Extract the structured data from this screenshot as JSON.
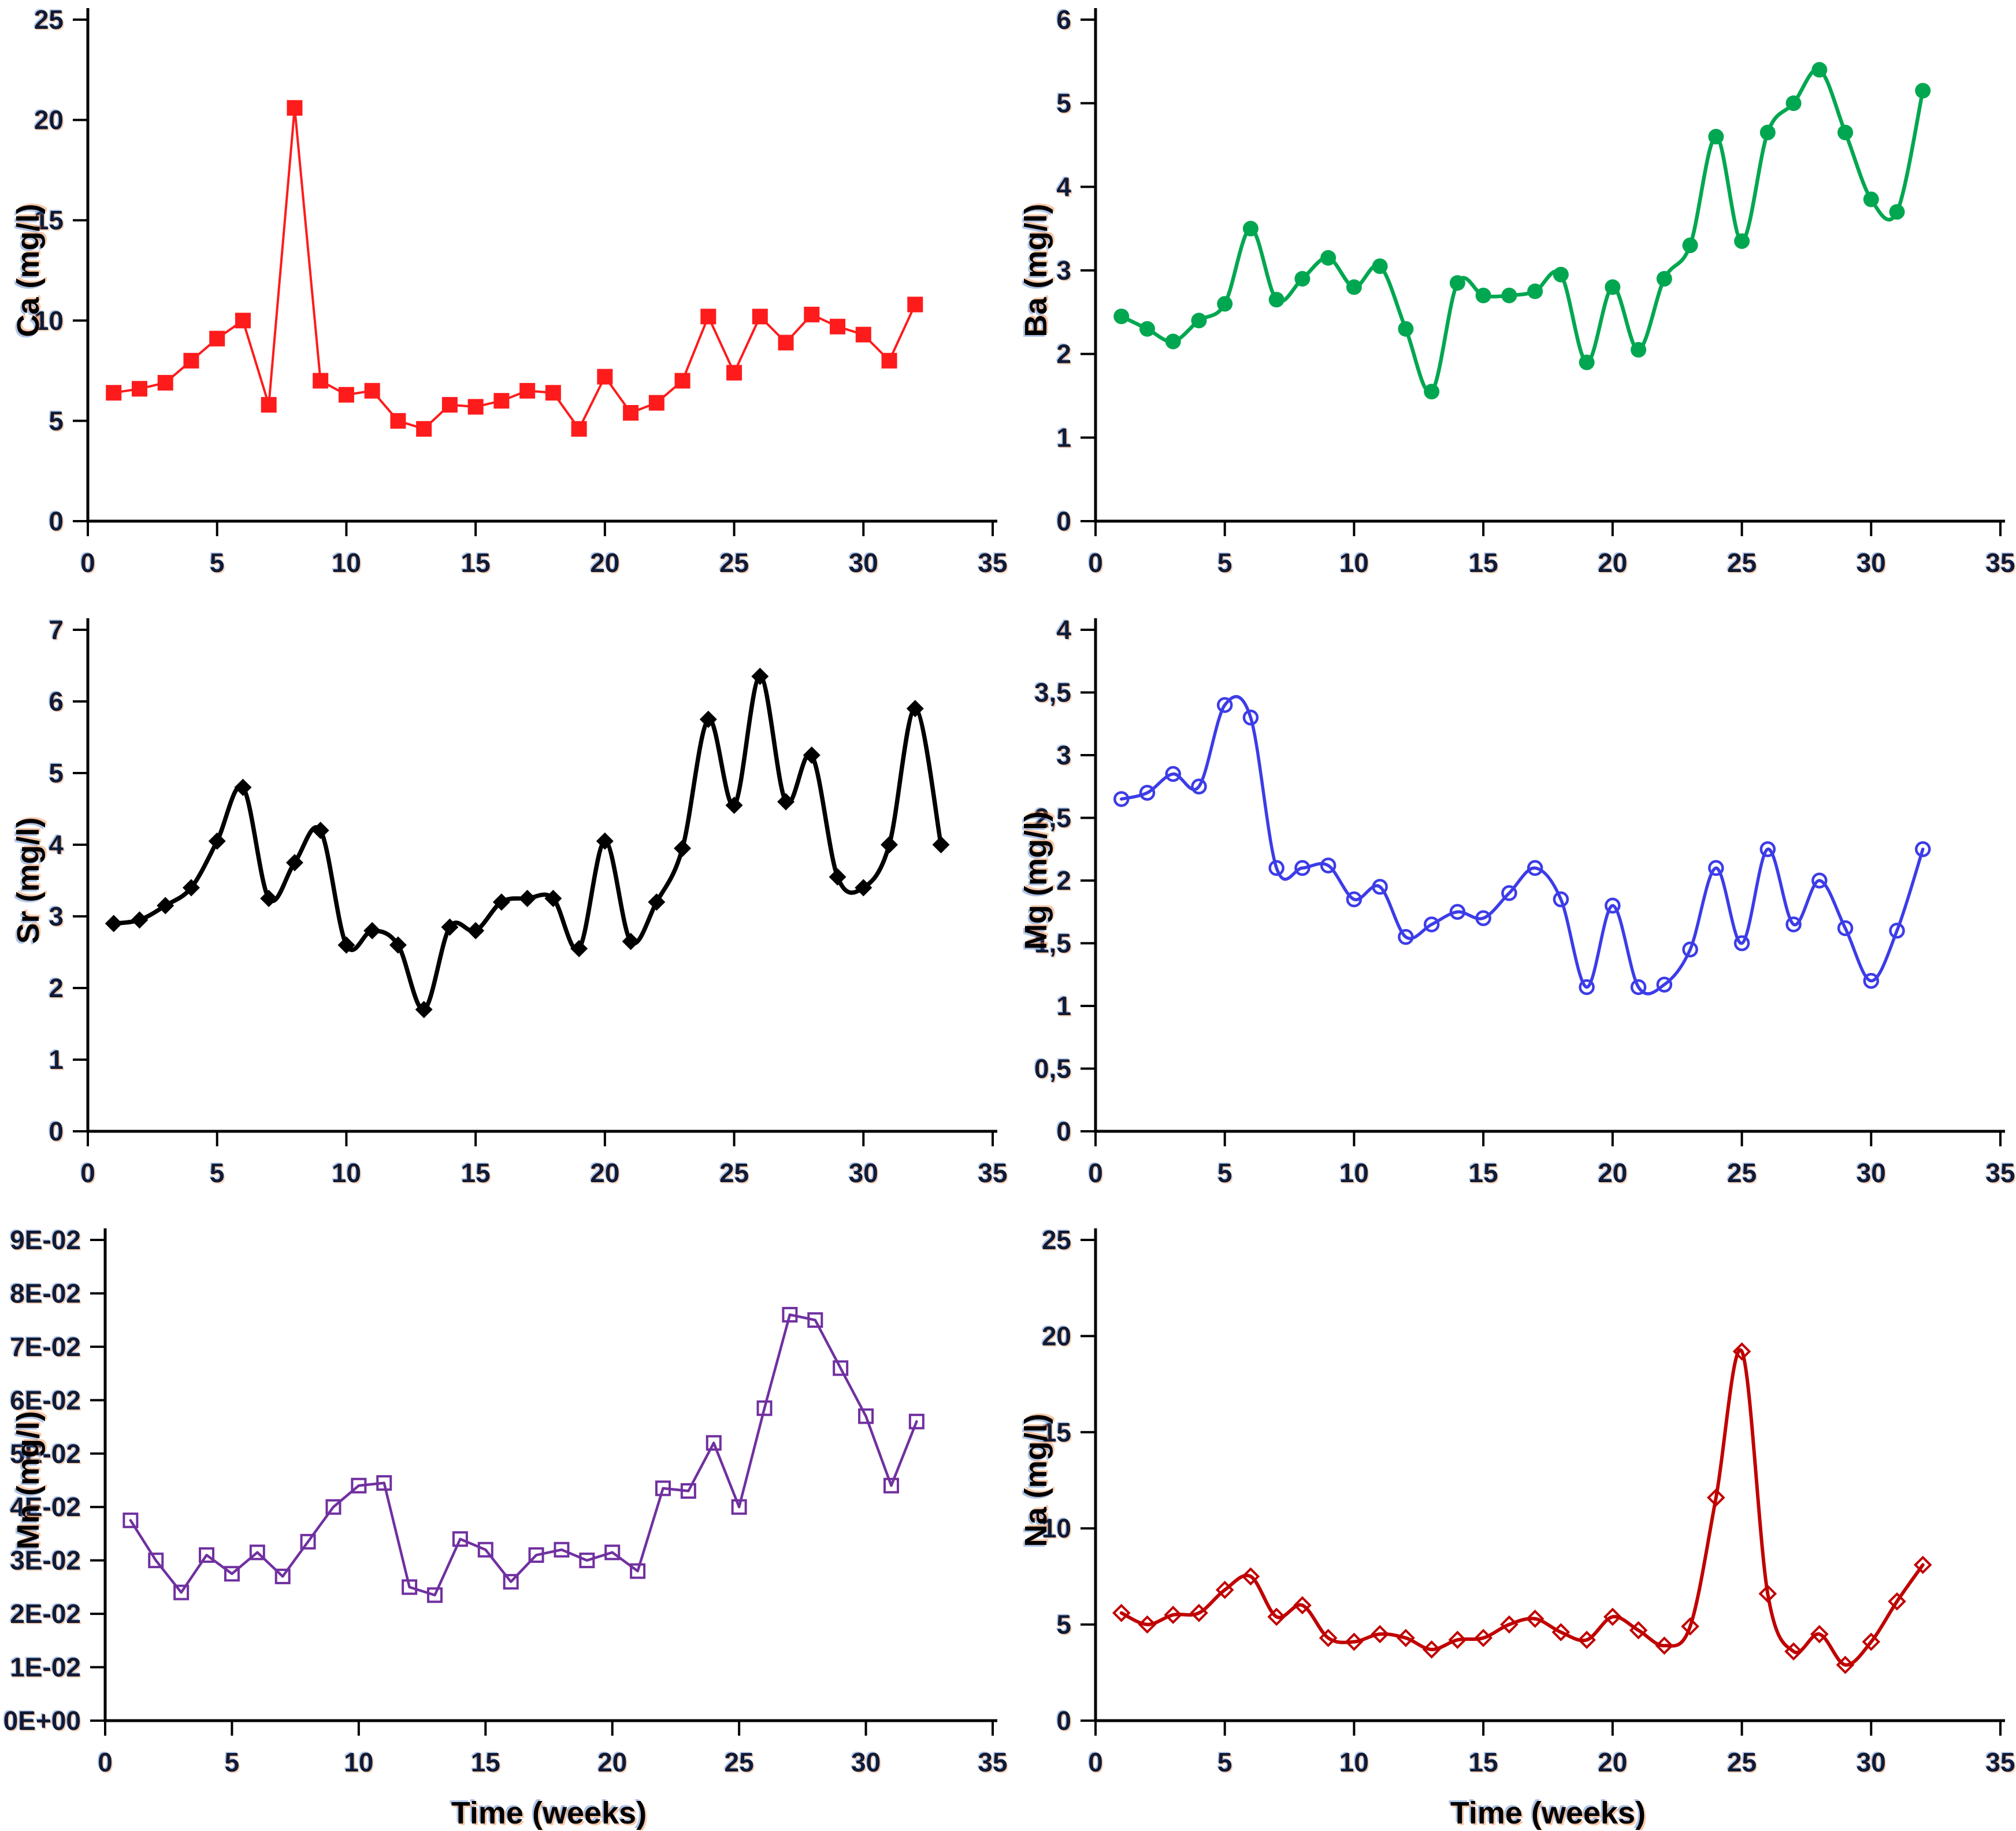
{
  "figure": {
    "description": "Six time-series line charts of element concentrations versus time",
    "x_axis_title": "Time (weeks)",
    "background_color": "#ffffff",
    "axis_color": "#000000"
  },
  "chart_data": [
    {
      "type": "line",
      "id": "ca",
      "title": "",
      "ylabel": "Ca (mg/l)",
      "xlabel": "",
      "series_color": "#fe1b1b",
      "marker": "filled-square",
      "smooth": false,
      "legend": "none",
      "grid": false,
      "xlim": [
        0,
        35
      ],
      "ylim": [
        0,
        25
      ],
      "xticks": [
        0,
        5,
        10,
        15,
        20,
        25,
        30,
        35
      ],
      "xtick_labels": [
        "0",
        "5",
        "10",
        "15",
        "20",
        "25",
        "30",
        "35"
      ],
      "yticks": [
        0,
        5,
        10,
        15,
        20,
        25
      ],
      "ytick_labels": [
        "0",
        "5",
        "10",
        "15",
        "20",
        "25"
      ],
      "x": [
        1,
        2,
        3,
        4,
        5,
        6,
        7,
        8,
        9,
        10,
        11,
        12,
        13,
        14,
        15,
        16,
        17,
        18,
        19,
        20,
        21,
        22,
        23,
        24,
        25,
        26,
        27,
        28,
        29,
        30,
        31,
        32
      ],
      "y": [
        6.4,
        6.6,
        6.9,
        8.0,
        9.1,
        10.0,
        5.8,
        20.6,
        7.0,
        6.3,
        6.5,
        5.0,
        4.6,
        5.8,
        5.7,
        6.0,
        6.5,
        6.4,
        4.6,
        7.2,
        5.4,
        5.9,
        7.0,
        10.2,
        7.4,
        10.2,
        8.9,
        10.3,
        9.7,
        9.3,
        8.0,
        10.8
      ]
    },
    {
      "type": "line",
      "id": "ba",
      "title": "",
      "ylabel": "Ba (mg/l)",
      "xlabel": "",
      "series_color": "#00a750",
      "marker": "filled-circle",
      "smooth": true,
      "legend": "none",
      "grid": false,
      "xlim": [
        0,
        35
      ],
      "ylim": [
        0,
        6
      ],
      "xticks": [
        0,
        5,
        10,
        15,
        20,
        25,
        30,
        35
      ],
      "xtick_labels": [
        "0",
        "5",
        "10",
        "15",
        "20",
        "25",
        "30",
        "35"
      ],
      "yticks": [
        0,
        1,
        2,
        3,
        4,
        5,
        6
      ],
      "ytick_labels": [
        "0",
        "1",
        "2",
        "3",
        "4",
        "5",
        "6"
      ],
      "x": [
        1,
        2,
        3,
        4,
        5,
        6,
        7,
        8,
        9,
        10,
        11,
        12,
        13,
        14,
        15,
        16,
        17,
        18,
        19,
        20,
        21,
        22,
        23,
        24,
        25,
        26,
        27,
        28,
        29,
        30,
        31,
        32
      ],
      "y": [
        2.45,
        2.3,
        2.15,
        2.4,
        2.6,
        3.5,
        2.65,
        2.9,
        3.15,
        2.8,
        3.05,
        2.3,
        1.55,
        2.85,
        2.7,
        2.7,
        2.75,
        2.95,
        1.9,
        2.8,
        2.05,
        2.9,
        3.3,
        4.6,
        3.35,
        4.65,
        5.0,
        5.4,
        4.65,
        3.85,
        3.7,
        5.15
      ]
    },
    {
      "type": "line",
      "id": "sr",
      "title": "",
      "ylabel": "Sr (mg/l)",
      "xlabel": "",
      "series_color": "#000000",
      "marker": "filled-diamond",
      "smooth": true,
      "legend": "none",
      "grid": false,
      "xlim": [
        0,
        35
      ],
      "ylim": [
        0,
        7
      ],
      "xticks": [
        0,
        5,
        10,
        15,
        20,
        25,
        30,
        35
      ],
      "xtick_labels": [
        "0",
        "5",
        "10",
        "15",
        "20",
        "25",
        "30",
        "35"
      ],
      "yticks": [
        0,
        1,
        2,
        3,
        4,
        5,
        6,
        7
      ],
      "ytick_labels": [
        "0",
        "1",
        "2",
        "3",
        "4",
        "5",
        "6",
        "7"
      ],
      "x": [
        1,
        2,
        3,
        4,
        5,
        6,
        7,
        8,
        9,
        10,
        11,
        12,
        13,
        14,
        15,
        16,
        17,
        18,
        19,
        20,
        21,
        22,
        23,
        24,
        25,
        26,
        27,
        28,
        29,
        30,
        31,
        32,
        33
      ],
      "y": [
        2.9,
        2.95,
        3.15,
        3.4,
        4.05,
        4.8,
        3.25,
        3.75,
        4.2,
        2.6,
        2.8,
        2.6,
        1.7,
        2.85,
        2.8,
        3.2,
        3.25,
        3.25,
        2.55,
        4.05,
        2.65,
        3.2,
        3.95,
        5.75,
        4.55,
        6.35,
        4.6,
        5.25,
        3.55,
        3.4,
        4.0,
        5.9,
        4.0
      ]
    },
    {
      "type": "line",
      "id": "mg",
      "title": "",
      "ylabel": "Mg (mg/l)",
      "xlabel": "",
      "series_color": "#3c3ce8",
      "marker": "open-circle",
      "smooth": true,
      "legend": "none",
      "grid": false,
      "xlim": [
        0,
        35
      ],
      "ylim": [
        0,
        4
      ],
      "xticks": [
        0,
        5,
        10,
        15,
        20,
        25,
        30,
        35
      ],
      "xtick_labels": [
        "0",
        "5",
        "10",
        "15",
        "20",
        "25",
        "30",
        "35"
      ],
      "yticks": [
        0,
        0.5,
        1,
        1.5,
        2,
        2.5,
        3,
        3.5,
        4
      ],
      "ytick_labels": [
        "0",
        "0,5",
        "1",
        "1,5",
        "2",
        "2,5",
        "3",
        "3,5",
        "4"
      ],
      "x": [
        1,
        2,
        3,
        4,
        5,
        6,
        7,
        8,
        9,
        10,
        11,
        12,
        13,
        14,
        15,
        16,
        17,
        18,
        19,
        20,
        21,
        22,
        23,
        24,
        25,
        26,
        27,
        28,
        29,
        30,
        31,
        32
      ],
      "y": [
        2.65,
        2.7,
        2.85,
        2.75,
        3.4,
        3.3,
        2.1,
        2.1,
        2.12,
        1.85,
        1.95,
        1.55,
        1.65,
        1.75,
        1.7,
        1.9,
        2.1,
        1.85,
        1.15,
        1.8,
        1.15,
        1.17,
        1.45,
        2.1,
        1.5,
        2.25,
        1.65,
        2.0,
        1.62,
        1.2,
        1.6,
        2.25
      ]
    },
    {
      "type": "line",
      "id": "mn",
      "title": "",
      "ylabel": "Mn (mg/l)",
      "xlabel": "Time (weeks)",
      "series_color": "#7030a0",
      "marker": "open-square",
      "smooth": false,
      "legend": "none",
      "grid": false,
      "xlim": [
        0,
        35
      ],
      "ylim": [
        0,
        0.09
      ],
      "xticks": [
        0,
        5,
        10,
        15,
        20,
        25,
        30,
        35
      ],
      "xtick_labels": [
        "0",
        "5",
        "10",
        "15",
        "20",
        "25",
        "30",
        "35"
      ],
      "yticks": [
        0,
        0.01,
        0.02,
        0.03,
        0.04,
        0.05,
        0.06,
        0.07,
        0.08,
        0.09
      ],
      "ytick_labels": [
        "0E+00",
        "1E-02",
        "2E-02",
        "3E-02",
        "4E-02",
        "5E-02",
        "6E-02",
        "7E-02",
        "8E-02",
        "9E-02"
      ],
      "x": [
        1,
        2,
        3,
        4,
        5,
        6,
        7,
        8,
        9,
        10,
        11,
        12,
        13,
        14,
        15,
        16,
        17,
        18,
        19,
        20,
        21,
        22,
        23,
        24,
        25,
        26,
        27,
        28,
        29,
        30,
        31,
        32
      ],
      "y": [
        0.0375,
        0.03,
        0.024,
        0.031,
        0.0275,
        0.0315,
        0.027,
        0.0335,
        0.04,
        0.044,
        0.0445,
        0.025,
        0.0235,
        0.034,
        0.032,
        0.026,
        0.031,
        0.032,
        0.03,
        0.0315,
        0.028,
        0.0435,
        0.043,
        0.052,
        0.04,
        0.0585,
        0.076,
        0.075,
        0.066,
        0.057,
        0.044,
        0.056
      ]
    },
    {
      "type": "line",
      "id": "na",
      "title": "",
      "ylabel": "Na (mg/l)",
      "xlabel": "Time (weeks)",
      "series_color": "#c00000",
      "marker": "open-diamond",
      "smooth": true,
      "legend": "none",
      "grid": false,
      "xlim": [
        0,
        35
      ],
      "ylim": [
        0,
        25
      ],
      "xticks": [
        0,
        5,
        10,
        15,
        20,
        25,
        30,
        35
      ],
      "xtick_labels": [
        "0",
        "5",
        "10",
        "15",
        "20",
        "25",
        "30",
        "35"
      ],
      "yticks": [
        0,
        5,
        10,
        15,
        20,
        25
      ],
      "ytick_labels": [
        "0",
        "5",
        "10",
        "15",
        "20",
        "25"
      ],
      "x": [
        1,
        2,
        3,
        4,
        5,
        6,
        7,
        8,
        9,
        10,
        11,
        12,
        13,
        14,
        15,
        16,
        17,
        18,
        19,
        20,
        21,
        22,
        23,
        24,
        25,
        26,
        27,
        28,
        29,
        30,
        31,
        32
      ],
      "y": [
        5.6,
        5.0,
        5.5,
        5.6,
        6.8,
        7.5,
        5.4,
        6.0,
        4.3,
        4.1,
        4.5,
        4.3,
        3.7,
        4.2,
        4.3,
        5.0,
        5.3,
        4.6,
        4.2,
        5.4,
        4.7,
        3.9,
        4.9,
        11.6,
        19.2,
        6.6,
        3.6,
        4.5,
        2.9,
        4.1,
        6.2,
        8.1
      ]
    }
  ]
}
